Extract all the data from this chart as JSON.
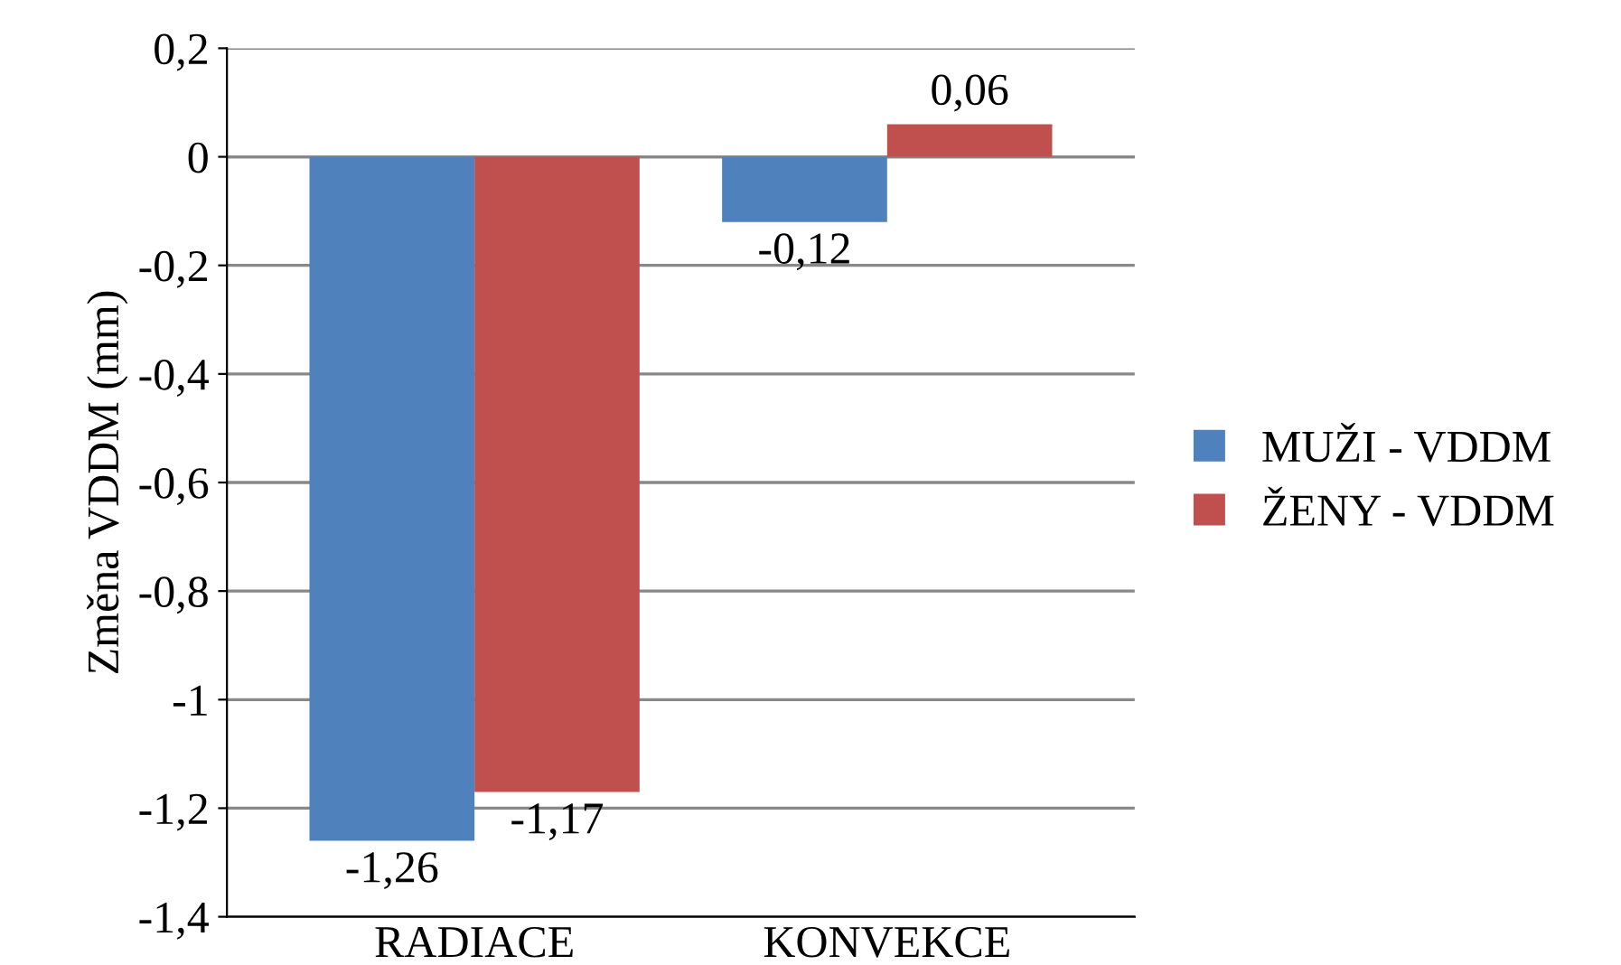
{
  "chart_data": {
    "type": "bar",
    "ylabel": "Změna VDDM (mm)",
    "categories": [
      "RADIACE",
      "KONVEKCE"
    ],
    "series": [
      {
        "name": "MUŽI - VDDM",
        "color": "#4f81bd",
        "values": [
          -1.26,
          -0.12
        ],
        "value_labels": [
          "-1,26",
          "-0,12"
        ]
      },
      {
        "name": "ŽENY - VDDM",
        "color": "#c0504d",
        "values": [
          -1.17,
          0.06
        ],
        "value_labels": [
          "-1,17",
          "0,06"
        ]
      }
    ],
    "ylim": [
      -1.4,
      0.2
    ],
    "yticks": [
      {
        "value": 0.2,
        "label": "0,2"
      },
      0,
      {
        "value": -0.2,
        "label": "-0,2"
      },
      {
        "value": -0.4,
        "label": "-0,4"
      },
      {
        "value": -0.6,
        "label": "-0,6"
      },
      {
        "value": -0.8,
        "label": "-0,8"
      },
      -1,
      {
        "value": -1.2,
        "label": "-1,2"
      },
      {
        "value": -1.4,
        "label": "-1,4"
      }
    ],
    "grid": "y",
    "legend": "right"
  }
}
